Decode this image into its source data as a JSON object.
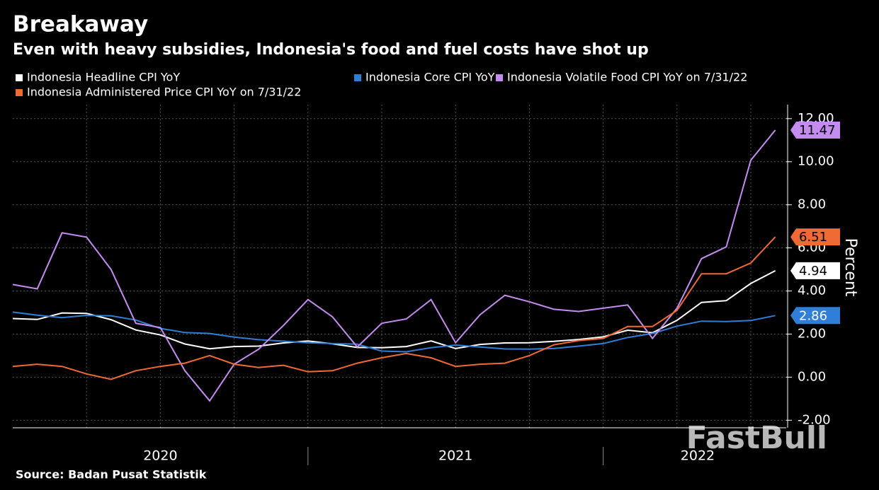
{
  "chart_data": {
    "type": "line",
    "title": "Breakaway",
    "subtitle": "Even with heavy subsidies, Indonesia's food and fuel costs have shot up",
    "source": "Source: Badan Pusat Statistik",
    "watermark": "FastBull",
    "y_label": "Percent",
    "x": [
      2020.0,
      2020.083,
      2020.167,
      2020.25,
      2020.333,
      2020.417,
      2020.5,
      2020.583,
      2020.667,
      2020.75,
      2020.833,
      2020.917,
      2021.0,
      2021.083,
      2021.167,
      2021.25,
      2021.333,
      2021.417,
      2021.5,
      2021.583,
      2021.667,
      2021.75,
      2021.833,
      2021.917,
      2022.0,
      2022.083,
      2022.167,
      2022.25,
      2022.333,
      2022.417,
      2022.5,
      2022.583
    ],
    "series": [
      {
        "name": "Indonesia Headline CPI YoY",
        "color": "#ffffff",
        "values": [
          2.72,
          2.68,
          2.98,
          2.96,
          2.67,
          2.19,
          1.96,
          1.54,
          1.32,
          1.42,
          1.44,
          1.59,
          1.68,
          1.55,
          1.38,
          1.37,
          1.42,
          1.68,
          1.33,
          1.52,
          1.59,
          1.6,
          1.66,
          1.75,
          1.87,
          2.18,
          2.06,
          2.64,
          3.47,
          3.55,
          4.35,
          4.94
        ]
      },
      {
        "name": "Indonesia Core CPI YoY",
        "color": "#2f7fd8",
        "values": [
          3.02,
          2.88,
          2.76,
          2.87,
          2.85,
          2.65,
          2.26,
          2.07,
          2.03,
          1.86,
          1.74,
          1.67,
          1.6,
          1.56,
          1.53,
          1.21,
          1.18,
          1.37,
          1.49,
          1.4,
          1.31,
          1.3,
          1.33,
          1.44,
          1.56,
          1.84,
          2.03,
          2.37,
          2.6,
          2.58,
          2.63,
          2.86
        ]
      },
      {
        "name": "Indonesia Volatile Food CPI YoY on 7/31/22",
        "color": "#c58cf0",
        "values": [
          4.3,
          4.1,
          6.7,
          6.5,
          5.0,
          2.5,
          2.3,
          0.3,
          -1.1,
          0.6,
          1.3,
          2.4,
          3.6,
          2.8,
          1.4,
          2.5,
          2.7,
          3.6,
          1.6,
          2.9,
          3.8,
          3.5,
          3.15,
          3.05,
          3.2,
          3.35,
          1.8,
          3.2,
          5.5,
          6.05,
          10.07,
          11.47
        ]
      },
      {
        "name": "Indonesia Administered Price CPI YoY on 7/31/22",
        "color": "#f06a35",
        "values": [
          0.5,
          0.6,
          0.5,
          0.15,
          -0.1,
          0.3,
          0.5,
          0.65,
          1.0,
          0.6,
          0.45,
          0.55,
          0.25,
          0.3,
          0.65,
          0.9,
          1.1,
          0.9,
          0.5,
          0.6,
          0.65,
          1.0,
          1.5,
          1.7,
          1.8,
          2.35,
          2.35,
          3.1,
          4.8,
          4.8,
          5.3,
          6.51
        ]
      }
    ],
    "xlim": [
      2020.0,
      2022.62
    ],
    "xticks": [
      {
        "value": 2020.5,
        "label": "2020"
      },
      {
        "value": 2021.5,
        "label": "2021"
      },
      {
        "value": 2022.32,
        "label": "2022"
      }
    ],
    "ylim": [
      -2.35,
      12.65
    ],
    "yticks": [
      {
        "value": -2,
        "label": "-2.00"
      },
      {
        "value": 0,
        "label": "0.00"
      },
      {
        "value": 2,
        "label": "2.00"
      },
      {
        "value": 4,
        "label": "4.00"
      },
      {
        "value": 6,
        "label": "6.00"
      },
      {
        "value": 8,
        "label": "8.00"
      },
      {
        "value": 10,
        "label": "10.00"
      },
      {
        "value": 12,
        "label": "12.00"
      }
    ],
    "grid": true
  }
}
